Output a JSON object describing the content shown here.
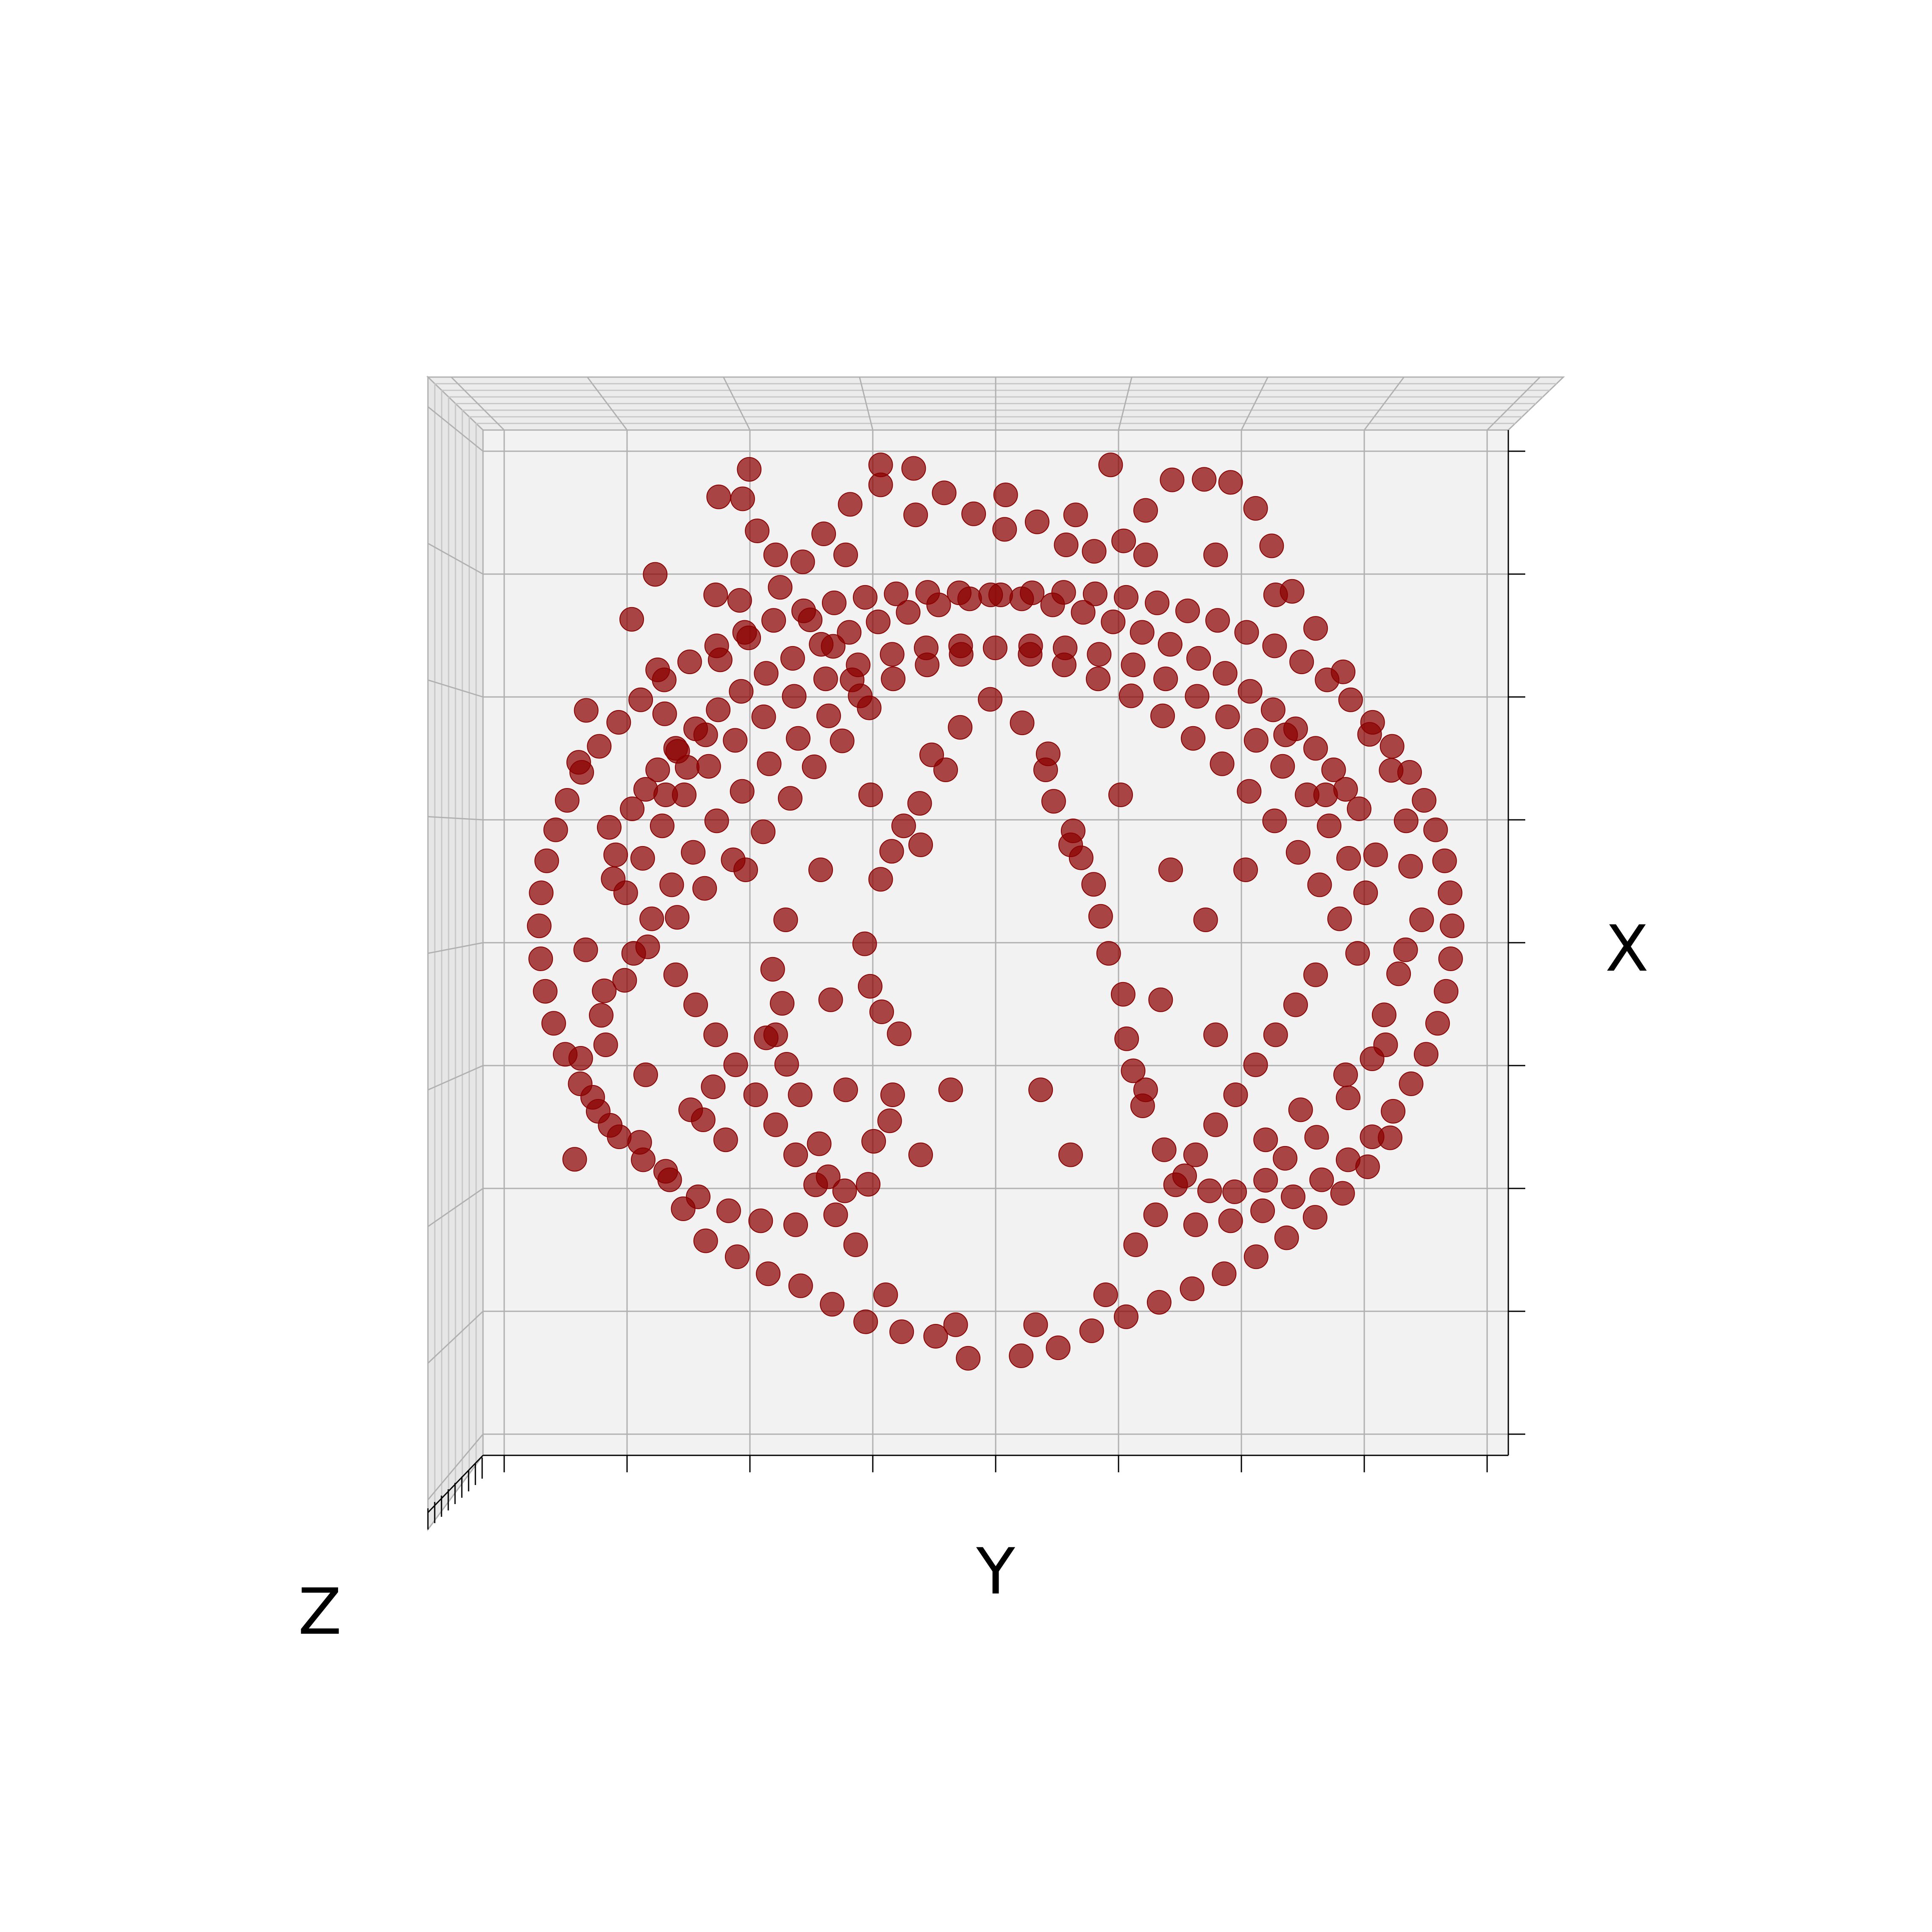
{
  "chart_data": {
    "type": "scatter",
    "projection": "3d-top-view",
    "title": "",
    "xlabel": "X",
    "ylabel": "Y",
    "zlabel": "Z",
    "tick_labels_shown": false,
    "grid": true,
    "legend": "none",
    "marker_color": "#8b0000",
    "pane_color": "#f2f2f2",
    "grid_color": "#b0b0b0",
    "xlim": [
      -1,
      1
    ],
    "ylim": [
      -1,
      1
    ],
    "points": [
      [
        -0.842,
        -0.429
      ],
      [
        -0.83,
        -0.227
      ],
      [
        -0.783,
        -0.092
      ],
      [
        -0.765,
        0.132
      ],
      [
        -0.773,
        0.235
      ],
      [
        -0.834,
        0.365
      ],
      [
        -0.819,
        0.469
      ],
      [
        -0.728,
        0.651
      ],
      [
        -0.681,
        0.741
      ],
      [
        -0.676,
        0.55
      ],
      [
        -0.662,
        0.462
      ],
      [
        -0.636,
        0.387
      ],
      [
        -0.617,
        0.355
      ],
      [
        -0.551,
        0.57
      ],
      [
        -0.494,
        0.614
      ],
      [
        -0.512,
        0.689
      ],
      [
        -0.477,
        0.828
      ],
      [
        -0.506,
        0.892
      ],
      [
        -0.554,
        0.896
      ],
      [
        -0.493,
        0.951
      ],
      [
        -0.585,
        -0.35
      ],
      [
        -0.565,
        -0.284
      ],
      [
        -0.459,
        -0.186
      ],
      [
        -0.427,
        -0.117
      ],
      [
        -0.446,
        -0.049
      ],
      [
        -0.418,
        -0.239
      ],
      [
        -0.391,
        -0.3
      ],
      [
        -0.353,
        -0.398
      ],
      [
        -0.335,
        -0.464
      ],
      [
        -0.302,
        -0.492
      ],
      [
        -0.255,
        -0.479
      ],
      [
        -0.244,
        -0.393
      ],
      [
        -0.212,
        -0.352
      ],
      [
        -0.206,
        -0.3
      ],
      [
        -0.193,
        -0.178
      ],
      [
        -0.228,
        -0.134
      ],
      [
        -0.251,
        -0.083
      ],
      [
        -0.262,
        0.002
      ],
      [
        -0.23,
        0.131
      ],
      [
        -0.208,
        0.187
      ],
      [
        -0.184,
        0.238
      ],
      [
        -0.152,
        0.283
      ],
      [
        -0.128,
        0.38
      ],
      [
        -0.071,
        0.435
      ],
      [
        -0.011,
        0.491
      ],
      [
        0.053,
        0.444
      ],
      [
        0.105,
        0.382
      ],
      [
        0.116,
        0.287
      ],
      [
        0.155,
        0.228
      ],
      [
        0.171,
        0.174
      ],
      [
        0.196,
        0.121
      ],
      [
        0.21,
        0.057
      ],
      [
        0.226,
        -0.017
      ],
      [
        0.255,
        -0.099
      ],
      [
        0.262,
        -0.188
      ],
      [
        0.275,
        -0.252
      ],
      [
        0.294,
        -0.322
      ],
      [
        0.337,
        -0.41
      ],
      [
        0.378,
        -0.462
      ],
      [
        0.428,
        -0.492
      ],
      [
        0.478,
        -0.494
      ],
      [
        0.54,
        -0.471
      ],
      [
        0.579,
        -0.427
      ],
      [
        0.642,
        -0.385
      ],
      [
        0.705,
        -0.306
      ],
      [
        0.753,
        -0.228
      ],
      [
        0.777,
        -0.14
      ],
      [
        0.806,
        -0.058
      ],
      [
        0.852,
        0.05
      ],
      [
        0.83,
        0.157
      ],
      [
        0.821,
        0.248
      ],
      [
        0.791,
        0.349
      ],
      [
        0.748,
        0.421
      ],
      [
        0.695,
        0.546
      ],
      [
        0.64,
        0.633
      ],
      [
        0.593,
        0.707
      ],
      [
        0.552,
        0.798
      ],
      [
        0.52,
        0.873
      ],
      [
        0.47,
        0.925
      ],
      [
        0.417,
        0.931
      ],
      [
        0.353,
        0.93
      ],
      [
        0.3,
        0.869
      ],
      [
        0.256,
        0.808
      ],
      [
        0.197,
        0.787
      ],
      [
        0.141,
        0.8
      ],
      [
        0.083,
        0.846
      ],
      [
        0.018,
        0.831
      ],
      [
        -0.044,
        0.862
      ],
      [
        -0.103,
        0.904
      ],
      [
        -0.164,
        0.953
      ],
      [
        -0.23,
        0.92
      ],
      [
        -0.291,
        0.881
      ],
      [
        -0.344,
        0.822
      ],
      [
        -0.386,
        0.766
      ],
      [
        -0.431,
        0.715
      ],
      [
        -0.371,
        0.65
      ],
      [
        -0.325,
        0.597
      ],
      [
        -0.287,
        0.53
      ],
      [
        -0.253,
        0.474
      ],
      [
        -0.307,
        0.408
      ],
      [
        -0.363,
        0.356
      ],
      [
        -0.411,
        0.293
      ],
      [
        -0.465,
        0.226
      ],
      [
        -0.525,
        0.17
      ],
      [
        -0.582,
        0.113
      ],
      [
        -0.637,
        0.055
      ],
      [
        -0.696,
        -0.004
      ],
      [
        -0.742,
        -0.071
      ],
      [
        -0.789,
        -0.141
      ],
      [
        -0.806,
        -0.305
      ],
      [
        -0.771,
        -0.361
      ],
      [
        -0.712,
        -0.395
      ],
      [
        -0.66,
        -0.453
      ],
      [
        -0.625,
        -0.528
      ],
      [
        -0.58,
        -0.592
      ],
      [
        -0.517,
        -0.624
      ],
      [
        -0.455,
        -0.658
      ],
      [
        -0.39,
        -0.682
      ],
      [
        -0.327,
        -0.719
      ],
      [
        -0.26,
        -0.754
      ],
      [
        -0.188,
        -0.774
      ],
      [
        -0.12,
        -0.783
      ],
      [
        -0.055,
        -0.827
      ],
      [
        0.051,
        -0.822
      ],
      [
        0.125,
        -0.806
      ],
      [
        0.192,
        -0.772
      ],
      [
        0.261,
        -0.744
      ],
      [
        0.327,
        -0.715
      ],
      [
        0.393,
        -0.688
      ],
      [
        0.457,
        -0.658
      ],
      [
        0.521,
        -0.624
      ],
      [
        0.582,
        -0.586
      ],
      [
        0.639,
        -0.545
      ],
      [
        0.694,
        -0.497
      ],
      [
        0.744,
        -0.444
      ],
      [
        0.789,
        -0.386
      ],
      [
        0.724,
        -0.017
      ],
      [
        0.688,
        0.052
      ],
      [
        0.648,
        0.12
      ],
      [
        0.605,
        0.185
      ],
      [
        0.558,
        0.248
      ],
      [
        0.507,
        0.307
      ],
      [
        0.453,
        0.362
      ],
      [
        0.395,
        0.413
      ],
      [
        0.334,
        0.458
      ],
      [
        0.271,
        0.498
      ],
      [
        0.205,
        0.532
      ],
      [
        0.137,
        0.56
      ],
      [
        0.069,
        0.581
      ],
      [
        -0.001,
        0.594
      ],
      [
        -0.07,
        0.598
      ],
      [
        -0.139,
        0.594
      ],
      [
        -0.207,
        0.581
      ],
      [
        -0.275,
        0.56
      ],
      [
        -0.34,
        0.532
      ],
      [
        -0.403,
        0.497
      ],
      [
        -0.464,
        0.456
      ],
      [
        -0.521,
        0.409
      ],
      [
        -0.574,
        0.357
      ],
      [
        -0.623,
        0.3
      ],
      [
        -0.667,
        0.238
      ],
      [
        -0.706,
        0.173
      ],
      [
        -0.74,
        0.104
      ],
      [
        -0.727,
        0.272
      ],
      [
        -0.7,
        0.311
      ],
      [
        -0.676,
        0.35
      ],
      [
        -0.64,
        0.393
      ],
      [
        -0.6,
        0.432
      ],
      [
        -0.555,
        0.47
      ],
      [
        -0.509,
        0.507
      ],
      [
        -0.459,
        0.543
      ],
      [
        -0.406,
        0.573
      ],
      [
        -0.349,
        0.601
      ],
      [
        -0.293,
        0.625
      ],
      [
        -0.235,
        0.646
      ],
      [
        -0.175,
        0.665
      ],
      [
        -0.114,
        0.68
      ],
      [
        -0.052,
        0.692
      ],
      [
        0.01,
        0.7
      ],
      [
        0.073,
        0.704
      ],
      [
        0.136,
        0.705
      ],
      [
        0.199,
        0.702
      ],
      [
        0.261,
        0.695
      ],
      [
        0.323,
        0.684
      ],
      [
        0.384,
        0.668
      ],
      [
        0.444,
        0.649
      ],
      [
        0.502,
        0.625
      ],
      [
        0.558,
        0.598
      ],
      [
        0.612,
        0.566
      ],
      [
        0.663,
        0.53
      ],
      [
        0.71,
        0.49
      ],
      [
        0.754,
        0.445
      ],
      [
        0.793,
        0.397
      ],
      [
        0.828,
        0.345
      ],
      [
        0.857,
        0.289
      ],
      [
        0.88,
        0.23
      ],
      [
        0.898,
        0.168
      ],
      [
        0.909,
        0.104
      ],
      [
        0.913,
        0.038
      ],
      [
        0.91,
        -0.028
      ],
      [
        0.901,
        -0.093
      ],
      [
        0.884,
        -0.157
      ],
      [
        0.861,
        -0.219
      ],
      [
        0.831,
        -0.278
      ],
      [
        0.795,
        -0.333
      ],
      [
        0.753,
        -0.384
      ],
      [
        0.705,
        -0.43
      ],
      [
        0.652,
        -0.47
      ],
      [
        0.595,
        -0.504
      ],
      [
        0.534,
        -0.532
      ],
      [
        0.47,
        -0.552
      ],
      [
        -0.47,
        -0.552
      ],
      [
        -0.534,
        -0.532
      ],
      [
        -0.595,
        -0.504
      ],
      [
        -0.652,
        -0.47
      ],
      [
        -0.705,
        -0.43
      ],
      [
        -0.753,
        -0.384
      ],
      [
        -0.795,
        -0.333
      ],
      [
        -0.831,
        -0.278
      ],
      [
        -0.861,
        -0.219
      ],
      [
        -0.884,
        -0.157
      ],
      [
        -0.901,
        -0.093
      ],
      [
        -0.91,
        -0.028
      ],
      [
        -0.913,
        0.038
      ],
      [
        -0.909,
        0.104
      ],
      [
        -0.898,
        0.168
      ],
      [
        -0.88,
        0.23
      ],
      [
        -0.857,
        0.289
      ],
      [
        -0.828,
        0.345
      ],
      [
        -0.793,
        0.397
      ],
      [
        -0.754,
        0.445
      ],
      [
        -0.71,
        0.49
      ],
      [
        -0.663,
        0.53
      ],
      [
        -0.612,
        0.566
      ],
      [
        -0.558,
        0.598
      ],
      [
        -0.502,
        0.625
      ],
      [
        -0.444,
        0.649
      ],
      [
        -0.384,
        0.668
      ],
      [
        -0.323,
        0.684
      ],
      [
        -0.261,
        0.695
      ],
      [
        -0.199,
        0.702
      ],
      [
        -0.136,
        0.705
      ],
      [
        -0.073,
        0.704
      ],
      [
        -0.01,
        0.7
      ],
      [
        0.052,
        0.692
      ],
      [
        0.114,
        0.68
      ],
      [
        0.175,
        0.665
      ],
      [
        0.235,
        0.646
      ],
      [
        0.293,
        0.625
      ],
      [
        0.349,
        0.601
      ],
      [
        0.406,
        0.573
      ],
      [
        0.459,
        0.543
      ],
      [
        0.509,
        0.507
      ],
      [
        0.555,
        0.47
      ],
      [
        0.6,
        0.432
      ],
      [
        0.64,
        0.393
      ],
      [
        0.676,
        0.35
      ],
      [
        0.7,
        0.311
      ],
      [
        0.727,
        0.272
      ],
      [
        0.74,
        0.104
      ],
      [
        0.706,
        0.173
      ],
      [
        0.667,
        0.238
      ],
      [
        0.623,
        0.3
      ],
      [
        0.574,
        0.357
      ],
      [
        0.521,
        0.409
      ],
      [
        0.464,
        0.456
      ],
      [
        0.403,
        0.497
      ],
      [
        0.34,
        0.532
      ],
      [
        0.275,
        0.56
      ],
      [
        0.207,
        0.581
      ],
      [
        0.139,
        0.594
      ],
      [
        0.07,
        0.598
      ],
      [
        -0.069,
        0.581
      ],
      [
        -0.137,
        0.56
      ],
      [
        -0.205,
        0.532
      ],
      [
        -0.271,
        0.498
      ],
      [
        -0.334,
        0.458
      ],
      [
        -0.395,
        0.413
      ],
      [
        -0.453,
        0.362
      ],
      [
        -0.507,
        0.307
      ],
      [
        -0.558,
        0.248
      ],
      [
        -0.605,
        0.185
      ],
      [
        -0.648,
        0.12
      ],
      [
        -0.688,
        0.052
      ],
      [
        -0.724,
        -0.017
      ],
      [
        -0.64,
        -0.06
      ],
      [
        -0.6,
        -0.12
      ],
      [
        -0.56,
        -0.18
      ],
      [
        -0.52,
        -0.24
      ],
      [
        -0.48,
        -0.3
      ],
      [
        -0.44,
        -0.36
      ],
      [
        -0.4,
        -0.42
      ],
      [
        -0.36,
        -0.48
      ],
      [
        -0.32,
        -0.54
      ],
      [
        -0.28,
        -0.6
      ],
      [
        0.28,
        -0.6
      ],
      [
        0.32,
        -0.54
      ],
      [
        0.36,
        -0.48
      ],
      [
        0.4,
        -0.42
      ],
      [
        0.44,
        -0.36
      ],
      [
        0.48,
        -0.3
      ],
      [
        0.52,
        -0.24
      ],
      [
        0.56,
        -0.18
      ],
      [
        0.6,
        -0.12
      ],
      [
        0.64,
        -0.06
      ],
      [
        -0.15,
        -0.42
      ],
      [
        0.09,
        -0.29
      ],
      [
        0.15,
        -0.42
      ],
      [
        -0.09,
        -0.29
      ],
      [
        -0.3,
        -0.29
      ],
      [
        0.3,
        -0.29
      ],
      [
        -0.35,
        0.15
      ],
      [
        0.35,
        0.15
      ],
      [
        -0.42,
        0.05
      ],
      [
        0.42,
        0.05
      ],
      [
        0.25,
        0.3
      ],
      [
        -0.25,
        0.3
      ],
      [
        0.1,
        0.35
      ],
      [
        -0.1,
        0.35
      ],
      [
        0.15,
        0.2
      ],
      [
        -0.15,
        0.2
      ],
      [
        0.44,
        -0.18
      ],
      [
        -0.44,
        -0.18
      ],
      [
        0.33,
        -0.11
      ],
      [
        -0.33,
        -0.11
      ],
      [
        0.5,
        0.15
      ],
      [
        -0.5,
        0.15
      ],
      [
        0.58,
        0.42
      ],
      [
        -0.58,
        0.42
      ],
      [
        0.66,
        0.3
      ],
      [
        -0.66,
        0.3
      ],
      [
        0.76,
        0.18
      ],
      [
        -0.76,
        0.18
      ],
      [
        0.82,
        -0.01
      ],
      [
        -0.82,
        -0.01
      ],
      [
        0.78,
        -0.2
      ],
      [
        -0.78,
        -0.2
      ],
      [
        0.7,
        -0.26
      ],
      [
        -0.7,
        -0.26
      ],
      [
        0.61,
        -0.33
      ],
      [
        -0.61,
        -0.33
      ],
      [
        0.54,
        -0.39
      ],
      [
        -0.54,
        -0.39
      ],
      [
        0.4,
        -0.56
      ],
      [
        -0.4,
        -0.56
      ],
      [
        0.22,
        -0.7
      ],
      [
        -0.22,
        -0.7
      ],
      [
        0.08,
        -0.76
      ],
      [
        -0.08,
        -0.76
      ],
      [
        0.56,
        0.7
      ],
      [
        -0.56,
        0.7
      ],
      [
        0.44,
        0.78
      ],
      [
        -0.44,
        0.78
      ],
      [
        0.3,
        0.78
      ],
      [
        -0.3,
        0.78
      ],
      [
        0.16,
        0.86
      ],
      [
        -0.16,
        0.86
      ],
      [
        0.02,
        0.9
      ],
      [
        0.23,
        0.96
      ],
      [
        -0.23,
        0.96
      ]
    ]
  }
}
